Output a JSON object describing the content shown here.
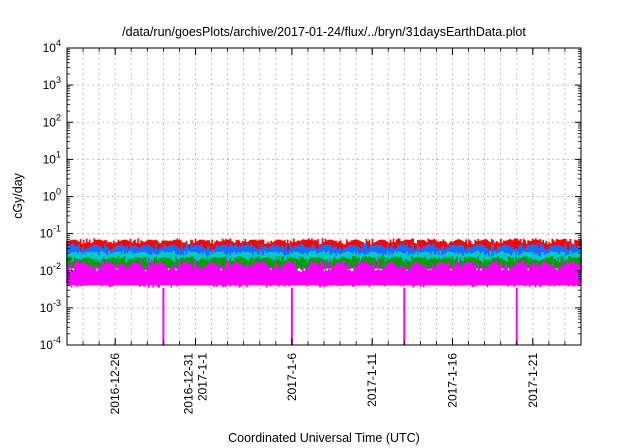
{
  "chart_data": {
    "type": "line",
    "title": "/data/run/goesPlots/archive/2017-01-24/flux/../bryn/31daysEarthData.plot",
    "xlabel": "Coordinated Universal Time (UTC)",
    "ylabel": "cGy/day",
    "yscale": "log",
    "ylim": [
      0.0001,
      10000
    ],
    "xlim": [
      "2016-12-23",
      "2017-01-24"
    ],
    "grid": true,
    "y_ticks": [
      {
        "value": 0.0001,
        "mantissa": "10",
        "exp": "-4"
      },
      {
        "value": 0.001,
        "mantissa": "10",
        "exp": "-3"
      },
      {
        "value": 0.01,
        "mantissa": "10",
        "exp": "-2"
      },
      {
        "value": 0.1,
        "mantissa": "10",
        "exp": "-1"
      },
      {
        "value": 1,
        "mantissa": "10",
        "exp": "0"
      },
      {
        "value": 10,
        "mantissa": "10",
        "exp": "1"
      },
      {
        "value": 100,
        "mantissa": "10",
        "exp": "2"
      },
      {
        "value": 1000,
        "mantissa": "10",
        "exp": "3"
      },
      {
        "value": 10000,
        "mantissa": "10",
        "exp": "4"
      }
    ],
    "x_ticks": [
      {
        "date": "2016-12-26",
        "lines": [
          "2016-12-26"
        ]
      },
      {
        "date": "2016-12-31",
        "lines": [
          "2016-12-31",
          "2017-1-1"
        ]
      },
      {
        "date": "2017-01-06",
        "lines": [
          "2017-1-6"
        ]
      },
      {
        "date": "2017-01-11",
        "lines": [
          "2017-1-11"
        ]
      },
      {
        "date": "2017-01-16",
        "lines": [
          "2017-1-16"
        ]
      },
      {
        "date": "2017-01-21",
        "lines": [
          "2017-1-21"
        ]
      }
    ],
    "series": [
      {
        "color": "#ff0000",
        "low": 0.03,
        "high": 0.075
      },
      {
        "color": "#1a6cff",
        "low": 0.02,
        "high": 0.055
      },
      {
        "color": "#00c8c8",
        "low": 0.015,
        "high": 0.035
      },
      {
        "color": "#00a000",
        "low": 0.01,
        "high": 0.025
      },
      {
        "color": "#ff00ff",
        "low": 0.0035,
        "high": 0.02,
        "dropouts": [
          "2016-12-29",
          "2017-01-06",
          "2017-01-13",
          "2017-01-20"
        ]
      }
    ]
  }
}
